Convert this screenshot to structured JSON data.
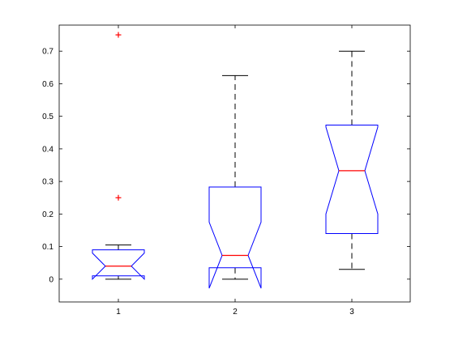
{
  "chart_data": {
    "type": "boxplot",
    "notched": true,
    "categories": [
      "1",
      "2",
      "3"
    ],
    "ylim": [
      -0.07,
      0.78
    ],
    "yticks": [
      0,
      0.1,
      0.2,
      0.3,
      0.4,
      0.5,
      0.6,
      0.7
    ],
    "ytick_labels": [
      "0",
      "0.1",
      "0.2",
      "0.3",
      "0.4",
      "0.5",
      "0.6",
      "0.7"
    ],
    "boxes": [
      {
        "category": "1",
        "q1": 0.01,
        "median": 0.04,
        "q3": 0.09,
        "notch_low": 0.0,
        "notch_high": 0.08,
        "whisker_low": 0.0,
        "whisker_high": 0.105,
        "outliers": [
          0.25,
          0.75
        ]
      },
      {
        "category": "2",
        "q1": 0.035,
        "median": 0.073,
        "q3": 0.283,
        "notch_low": -0.028,
        "notch_high": 0.175,
        "whisker_low": 0.0,
        "whisker_high": 0.625,
        "outliers": []
      },
      {
        "category": "3",
        "q1": 0.14,
        "median": 0.333,
        "q3": 0.473,
        "notch_low": 0.2,
        "notch_high": 0.467,
        "whisker_low": 0.03,
        "whisker_high": 0.7,
        "outliers": []
      }
    ],
    "title": "",
    "xlabel": "",
    "ylabel": "",
    "grid": false,
    "colors": {
      "box": "#0000ff",
      "median": "#ff0000",
      "whisker": "#000000",
      "outlier": "#ff0000",
      "axes": "#000000"
    }
  }
}
